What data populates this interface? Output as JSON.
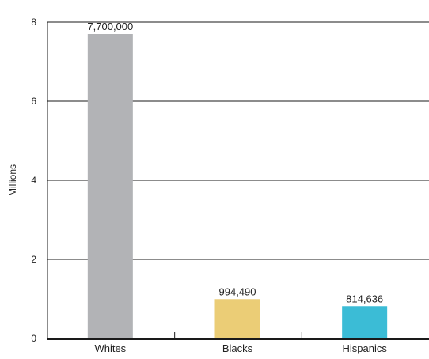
{
  "chart_data": {
    "type": "bar",
    "title": "",
    "xlabel": "",
    "ylabel": "Millions",
    "ylim": [
      0,
      8
    ],
    "yticks": [
      0,
      2,
      4,
      6,
      8
    ],
    "grid": true,
    "categories": [
      "Whites",
      "Blacks",
      "Hispanics"
    ],
    "values": [
      7.7,
      0.99449,
      0.814636
    ],
    "data_labels": [
      "7,700,000",
      "994,490",
      "814,636"
    ],
    "colors": [
      "#b2b3b6",
      "#ebcd76",
      "#3bbcd6"
    ]
  }
}
